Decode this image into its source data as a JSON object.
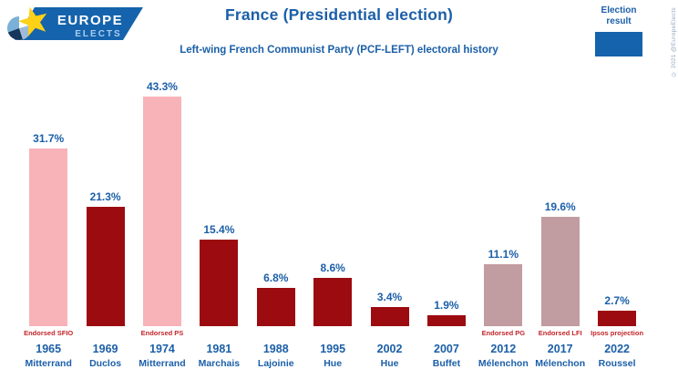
{
  "logo": {
    "line1": "EUROPE",
    "line2": "ELECTS"
  },
  "header": {
    "title": "France (Presidential election)",
    "subtitle": "Left-wing French Communist Party (PCF-LEFT) electoral history"
  },
  "legend": {
    "label_line1": "Election",
    "label_line2": "result",
    "swatch_color": "#1563ac"
  },
  "copyright": "© 2021 @EuropeElects",
  "chart_data": {
    "type": "bar",
    "title": "France (Presidential election)",
    "subtitle": "Left-wing French Communist Party (PCF-LEFT) electoral history",
    "unit": "%",
    "ylim": [
      0,
      45
    ],
    "grid": false,
    "legend_position": "top-right",
    "colors": {
      "endorsed_pink": "#f8b3b9",
      "party_red": "#9c0b10",
      "endorsed_mauve": "#c19ca1",
      "label_blue": "#1b5fa8",
      "note_red": "#c2262c"
    },
    "bars": [
      {
        "year": "1965",
        "candidate": "Mitterrand",
        "value": 31.7,
        "label": "31.7%",
        "note": "Endorsed SFIO",
        "color_key": "endorsed_pink"
      },
      {
        "year": "1969",
        "candidate": "Duclos",
        "value": 21.3,
        "label": "21.3%",
        "note": "",
        "color_key": "party_red"
      },
      {
        "year": "1974",
        "candidate": "Mitterrand",
        "value": 43.3,
        "label": "43.3%",
        "note": "Endorsed PS",
        "color_key": "endorsed_pink"
      },
      {
        "year": "1981",
        "candidate": "Marchais",
        "value": 15.4,
        "label": "15.4%",
        "note": "",
        "color_key": "party_red"
      },
      {
        "year": "1988",
        "candidate": "Lajoinie",
        "value": 6.8,
        "label": "6.8%",
        "note": "",
        "color_key": "party_red"
      },
      {
        "year": "1995",
        "candidate": "Hue",
        "value": 8.6,
        "label": "8.6%",
        "note": "",
        "color_key": "party_red"
      },
      {
        "year": "2002",
        "candidate": "Hue",
        "value": 3.4,
        "label": "3.4%",
        "note": "",
        "color_key": "party_red"
      },
      {
        "year": "2007",
        "candidate": "Buffet",
        "value": 1.9,
        "label": "1.9%",
        "note": "",
        "color_key": "party_red"
      },
      {
        "year": "2012",
        "candidate": "Mélenchon",
        "value": 11.1,
        "label": "11.1%",
        "note": "Endorsed PG",
        "color_key": "endorsed_mauve"
      },
      {
        "year": "2017",
        "candidate": "Mélenchon",
        "value": 19.6,
        "label": "19.6%",
        "note": "Endorsed LFI",
        "color_key": "endorsed_mauve"
      },
      {
        "year": "2022",
        "candidate": "Roussel",
        "value": 2.7,
        "label": "2.7%",
        "note": "Ipsos projection",
        "color_key": "party_red"
      }
    ]
  }
}
